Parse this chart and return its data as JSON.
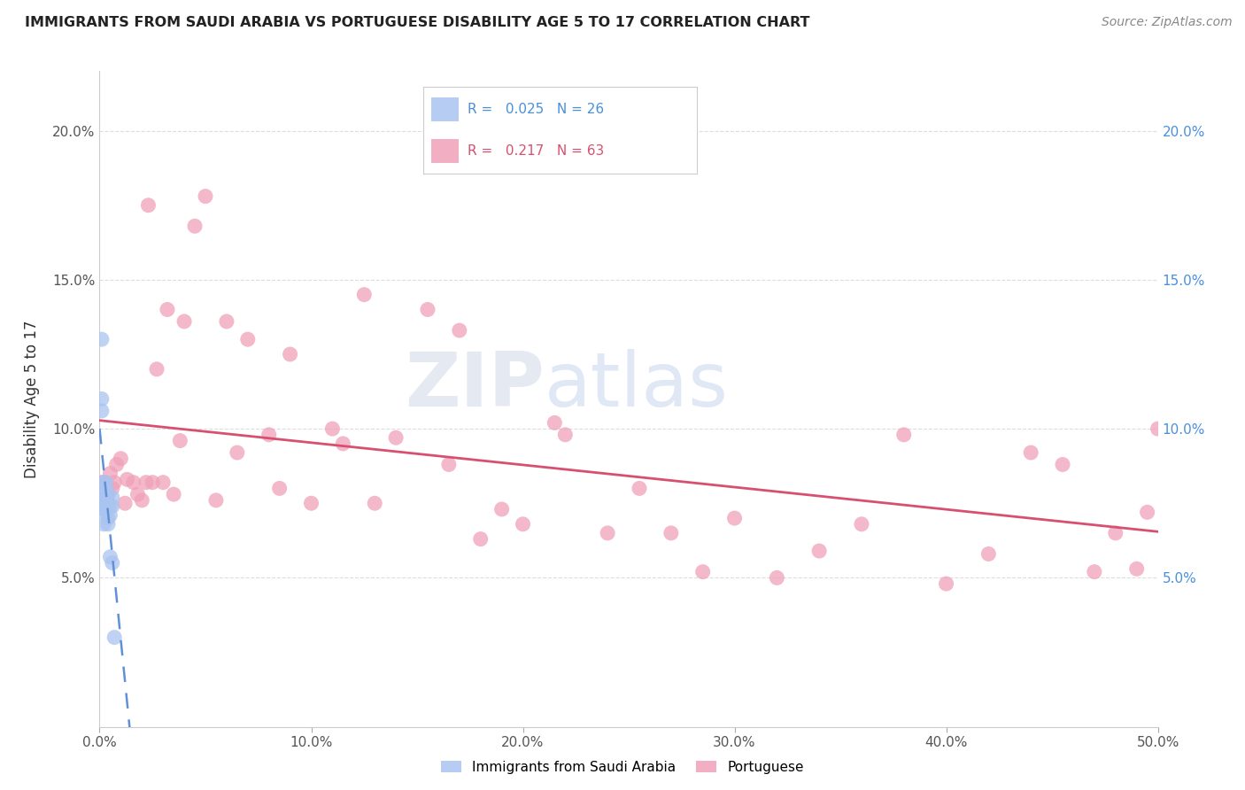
{
  "title": "IMMIGRANTS FROM SAUDI ARABIA VS PORTUGUESE DISABILITY AGE 5 TO 17 CORRELATION CHART",
  "source": "Source: ZipAtlas.com",
  "ylabel": "Disability Age 5 to 17",
  "xlim": [
    0.0,
    0.5
  ],
  "ylim": [
    0.0,
    0.22
  ],
  "xtick_vals": [
    0.0,
    0.1,
    0.2,
    0.3,
    0.4,
    0.5
  ],
  "xticklabels": [
    "0.0%",
    "10.0%",
    "20.0%",
    "30.0%",
    "40.0%",
    "50.0%"
  ],
  "ytick_vals": [
    0.05,
    0.1,
    0.15,
    0.2
  ],
  "yticklabels": [
    "5.0%",
    "10.0%",
    "15.0%",
    "20.0%"
  ],
  "saudi_x": [
    0.001,
    0.001,
    0.001,
    0.001,
    0.002,
    0.002,
    0.002,
    0.002,
    0.002,
    0.002,
    0.003,
    0.003,
    0.003,
    0.003,
    0.003,
    0.004,
    0.004,
    0.004,
    0.004,
    0.005,
    0.005,
    0.005,
    0.006,
    0.006,
    0.006,
    0.007
  ],
  "saudi_y": [
    0.13,
    0.11,
    0.106,
    0.076,
    0.082,
    0.079,
    0.076,
    0.074,
    0.073,
    0.068,
    0.082,
    0.079,
    0.077,
    0.073,
    0.072,
    0.078,
    0.075,
    0.07,
    0.068,
    0.074,
    0.071,
    0.057,
    0.077,
    0.074,
    0.055,
    0.03
  ],
  "portuguese_x": [
    0.001,
    0.002,
    0.004,
    0.005,
    0.006,
    0.007,
    0.008,
    0.01,
    0.012,
    0.013,
    0.016,
    0.018,
    0.02,
    0.022,
    0.023,
    0.025,
    0.027,
    0.03,
    0.032,
    0.035,
    0.038,
    0.04,
    0.045,
    0.05,
    0.055,
    0.06,
    0.065,
    0.07,
    0.08,
    0.085,
    0.09,
    0.1,
    0.11,
    0.115,
    0.125,
    0.13,
    0.14,
    0.155,
    0.165,
    0.17,
    0.18,
    0.19,
    0.2,
    0.215,
    0.22,
    0.24,
    0.255,
    0.27,
    0.285,
    0.3,
    0.32,
    0.34,
    0.36,
    0.38,
    0.4,
    0.42,
    0.44,
    0.455,
    0.47,
    0.48,
    0.49,
    0.495,
    0.5
  ],
  "portuguese_y": [
    0.082,
    0.082,
    0.078,
    0.085,
    0.08,
    0.082,
    0.088,
    0.09,
    0.075,
    0.083,
    0.082,
    0.078,
    0.076,
    0.082,
    0.175,
    0.082,
    0.12,
    0.082,
    0.14,
    0.078,
    0.096,
    0.136,
    0.168,
    0.178,
    0.076,
    0.136,
    0.092,
    0.13,
    0.098,
    0.08,
    0.125,
    0.075,
    0.1,
    0.095,
    0.145,
    0.075,
    0.097,
    0.14,
    0.088,
    0.133,
    0.063,
    0.073,
    0.068,
    0.102,
    0.098,
    0.065,
    0.08,
    0.065,
    0.052,
    0.07,
    0.05,
    0.059,
    0.068,
    0.098,
    0.048,
    0.058,
    0.092,
    0.088,
    0.052,
    0.065,
    0.053,
    0.072,
    0.1
  ],
  "saudi_color": "#aac4f0",
  "portuguese_color": "#f0a0b8",
  "saudi_line_color": "#6090d8",
  "portuguese_line_color": "#d85070",
  "watermark_zip": "ZIP",
  "watermark_atlas": "atlas",
  "grid_color": "#dddddd",
  "legend_r1": "R =   0.025   N = 26",
  "legend_r2": "R =   0.217   N = 63",
  "legend_color1": "#4a90d9",
  "legend_color2": "#d85070"
}
